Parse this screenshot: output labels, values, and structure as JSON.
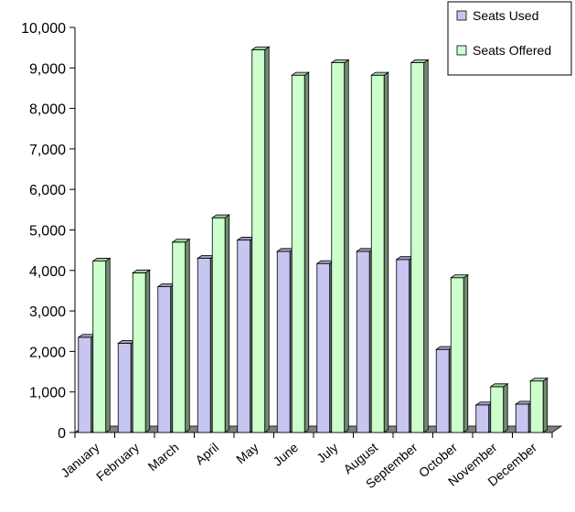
{
  "chart_data": {
    "type": "bar",
    "style": "3d-clustered-column",
    "categories": [
      "January",
      "February",
      "March",
      "April",
      "May",
      "June",
      "July",
      "August",
      "September",
      "October",
      "November",
      "December"
    ],
    "series": [
      {
        "name": "Seats Used",
        "color": "#c6c6f0",
        "values": [
          2350,
          2200,
          3600,
          4300,
          4750,
          4470,
          4170,
          4470,
          4270,
          2050,
          680,
          700
        ]
      },
      {
        "name": "Seats Offered",
        "color": "#ccffcc",
        "values": [
          4230,
          3940,
          4700,
          5300,
          9450,
          8820,
          9130,
          8820,
          9130,
          3820,
          1130,
          1270
        ]
      }
    ],
    "y_ticks": [
      "0",
      "1,000",
      "2,000",
      "3,000",
      "4,000",
      "5,000",
      "6,000",
      "7,000",
      "8,000",
      "9,000",
      "10,000"
    ],
    "ylim": [
      0,
      10000
    ],
    "legend_position": "top-right",
    "floor_color": "#808080"
  }
}
